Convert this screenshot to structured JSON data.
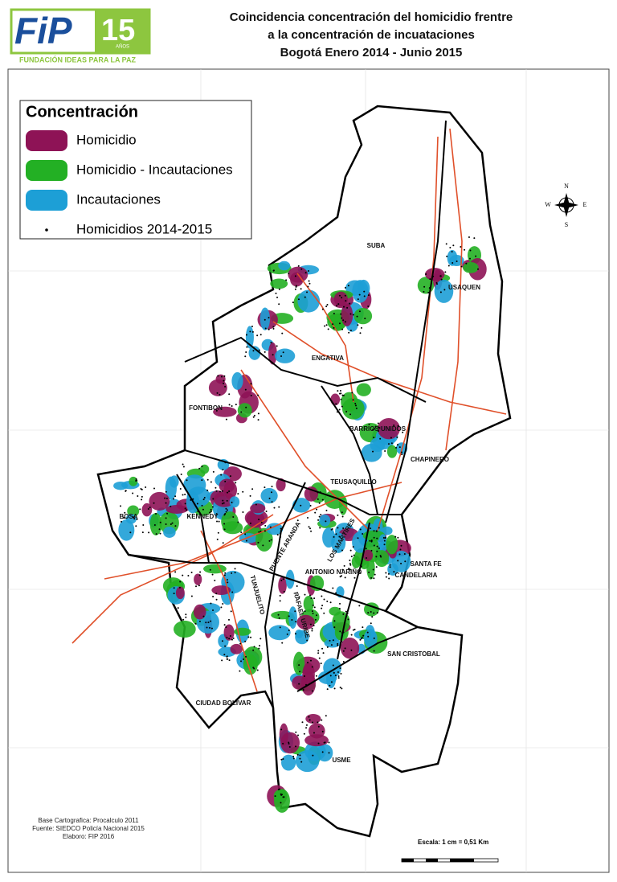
{
  "logo": {
    "name": "FiP",
    "years": "15",
    "years_label": "AÑOS",
    "tagline": "FUNDACIÓN IDEAS PARA LA PAZ"
  },
  "title": [
    "Coincidencia concentración del homicidio frentre",
    "a la concentración de incuataciones",
    "Bogotá  Enero 2014 - Junio 2015"
  ],
  "legend": {
    "title": "Concentración",
    "items": [
      {
        "label": "Homicidio",
        "color": "#8e1356"
      },
      {
        "label": "Homicidio - Incautaciones",
        "color": "#23b024"
      },
      {
        "label": "Incautaciones",
        "color": "#1d9fd6"
      },
      {
        "label": "Homicidios 2014-2015",
        "color": "#000000"
      }
    ]
  },
  "compass": {
    "n": "N",
    "s": "S",
    "e": "E",
    "w": "W"
  },
  "localities": [
    "SUBA",
    "USAQUEN",
    "ENGATIVA",
    "FONTIBON",
    "BARRIOS UNIDOS",
    "CHAPINERO",
    "TEUSAQUILLO",
    "BOSA",
    "KENNEDY",
    "PUENTE ARANDA",
    "LOS MARTIRES",
    "ANTONIO NARIÑO",
    "SANTA FE",
    "CANDELARIA",
    "TUNJUELITO",
    "RAFAEL URIBE",
    "SAN CRISTOBAL",
    "CIUDAD BOLIVAR",
    "USME"
  ],
  "sources": [
    "Base Cartografica: Procalculo 2011",
    "Fuente: SIEDCO Policía Nacional 2015",
    "Elaboro: FIP 2016"
  ],
  "scale": "Escala:  1 cm = 0,51 Km"
}
